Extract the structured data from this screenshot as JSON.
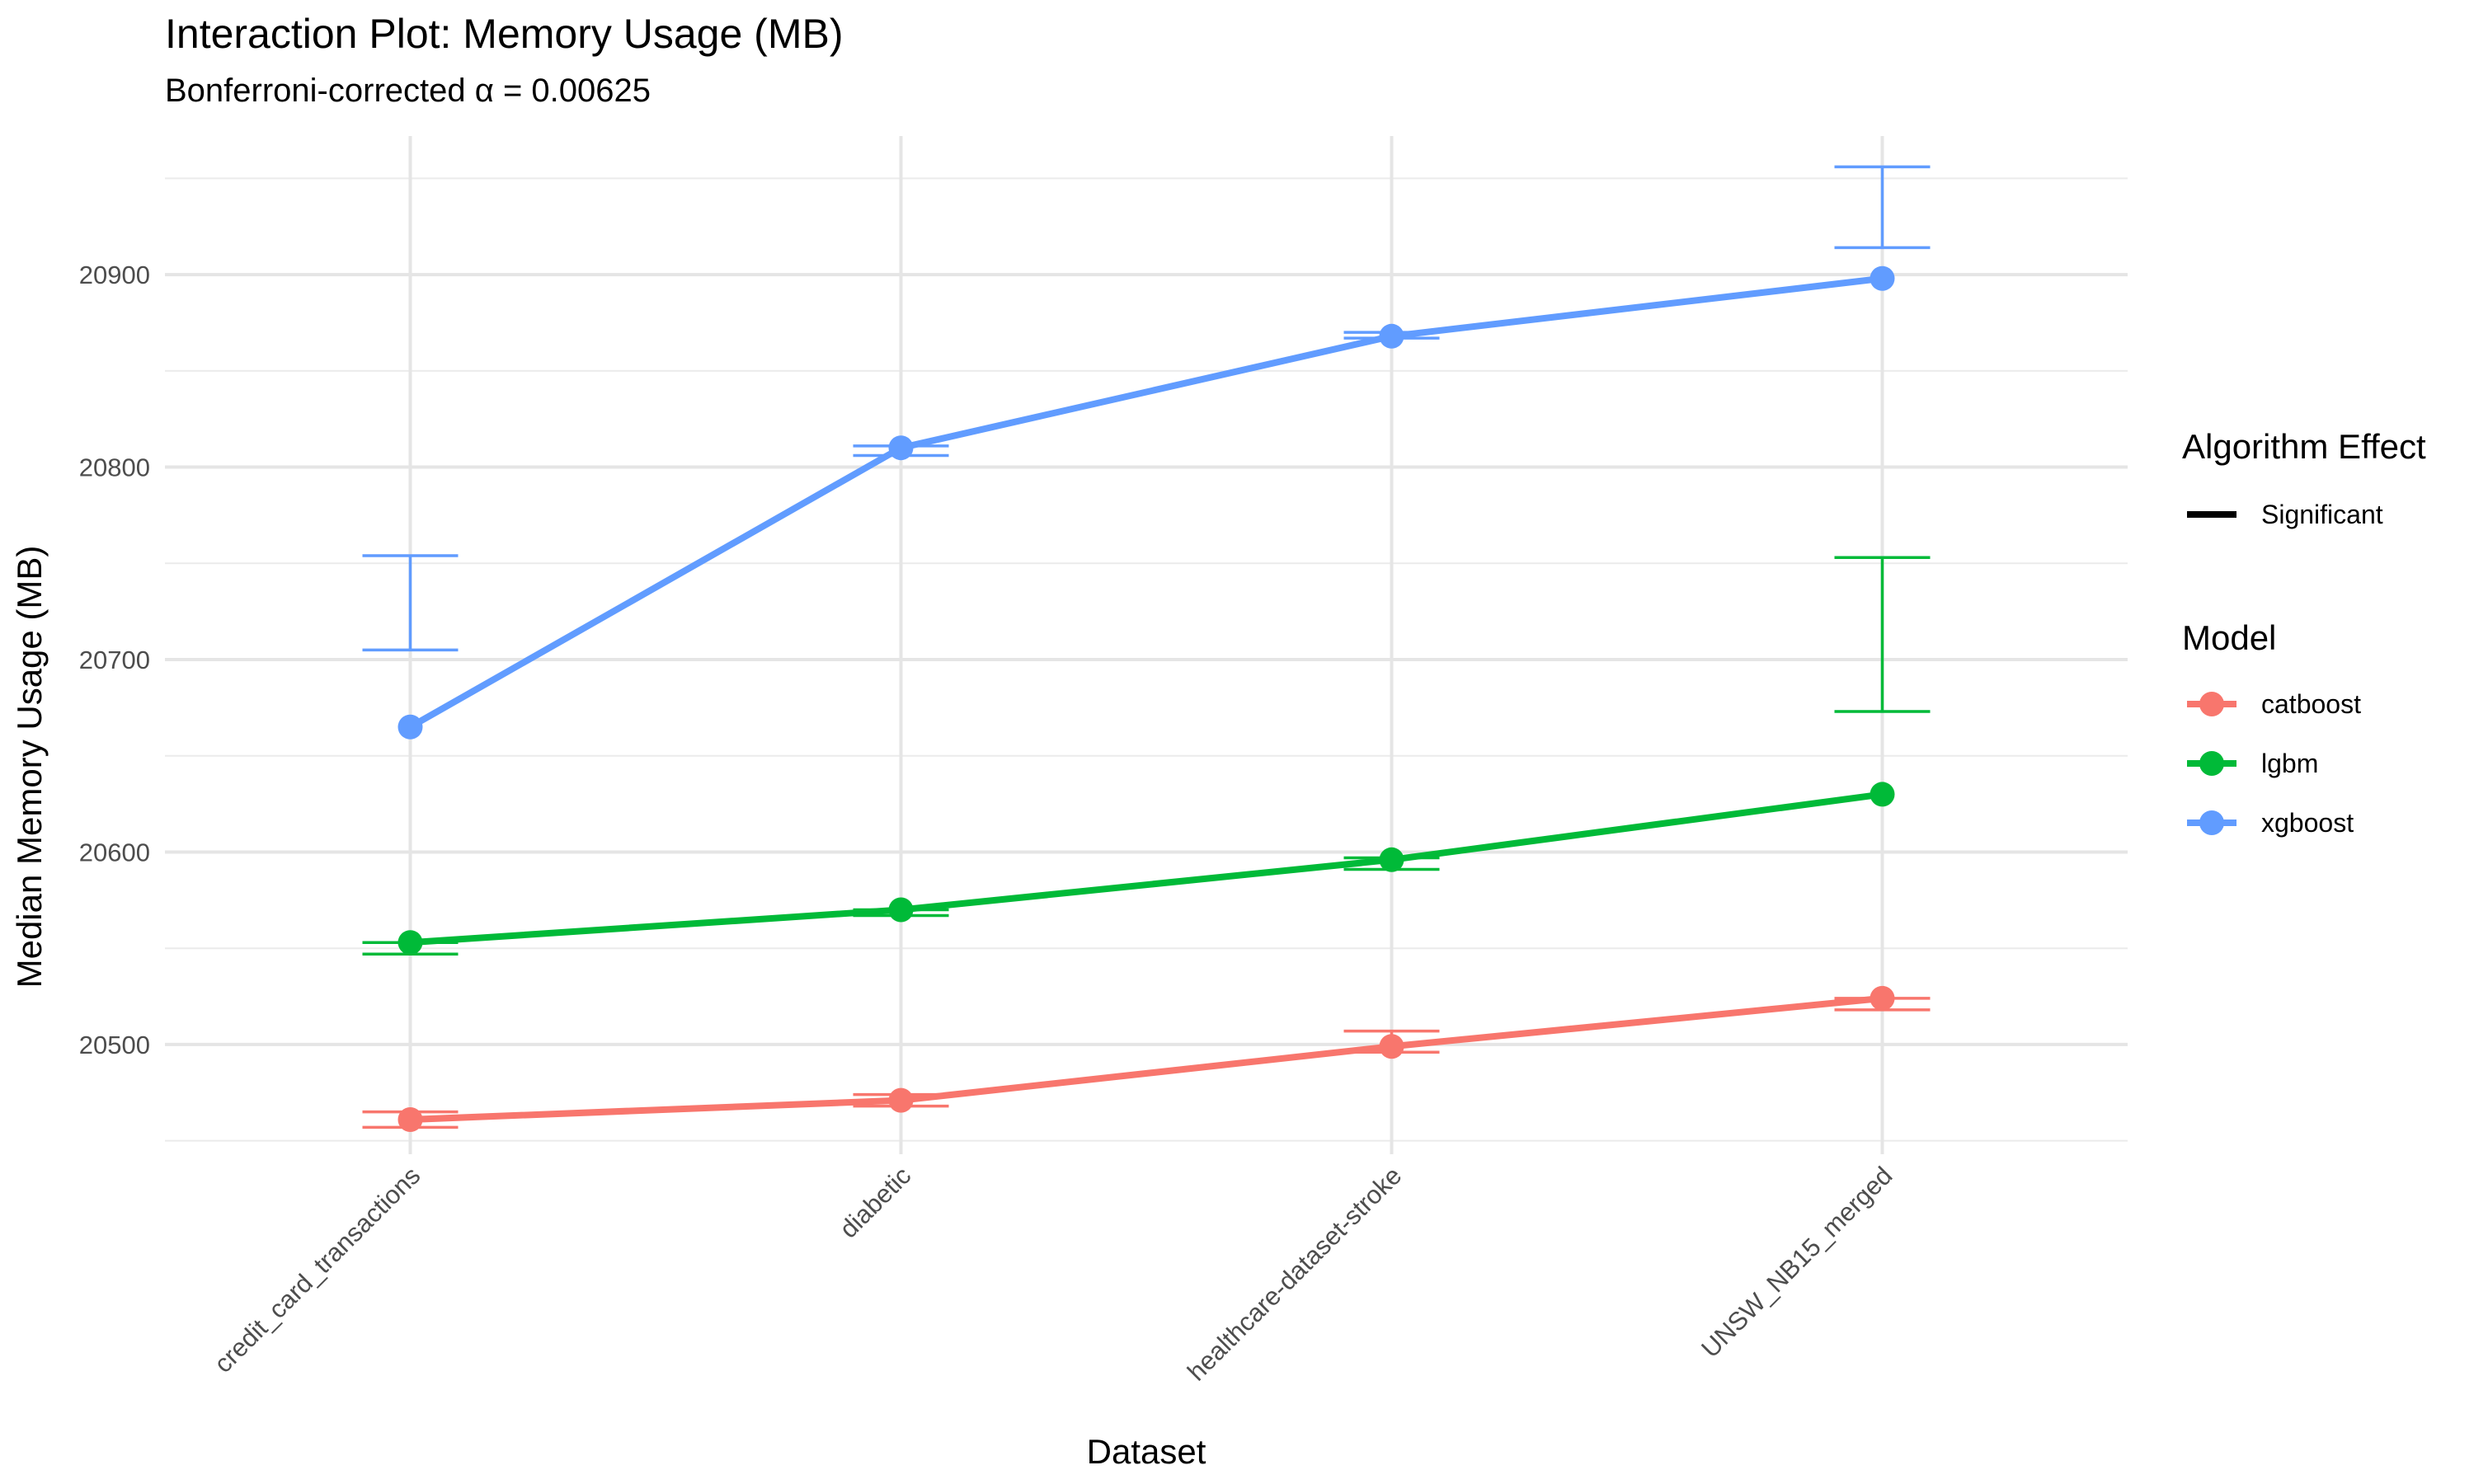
{
  "chart_data": {
    "type": "line",
    "title": "Interaction Plot: Memory Usage (MB)",
    "subtitle": "Bonferroni-corrected α = 0.00625",
    "xlabel": "Dataset",
    "ylabel": "Median Memory Usage (MB)",
    "categories": [
      "credit_card_transactions",
      "diabetic",
      "healthcare-dataset-stroke",
      "UNSW_NB15_merged"
    ],
    "ylim": [
      20443,
      20972
    ],
    "yticks": [
      20500,
      20600,
      20700,
      20800,
      20900
    ],
    "ytick_labels": [
      "20500",
      "20600",
      "20700",
      "20800",
      "20900"
    ],
    "grid": true,
    "legend_position": "right",
    "series": [
      {
        "name": "catboost",
        "color": "#F8766D",
        "values": [
          20461,
          20471,
          20499,
          20524
        ],
        "err_low": [
          20457,
          20468,
          20496,
          20518
        ],
        "err_high": [
          20465,
          20474,
          20507,
          20524
        ]
      },
      {
        "name": "lgbm",
        "color": "#00BA38",
        "values": [
          20553,
          20570,
          20596,
          20630
        ],
        "err_low": [
          20547,
          20567,
          20591,
          20673
        ],
        "err_high": [
          20553,
          20570,
          20597,
          20753
        ]
      },
      {
        "name": "xgboost",
        "color": "#619CFF",
        "values": [
          20665,
          20810,
          20868,
          20898
        ],
        "err_low": [
          20705,
          20806,
          20867,
          20914
        ],
        "err_high": [
          20754,
          20811,
          20870,
          20956
        ]
      }
    ],
    "legends": {
      "algorithm_effect": {
        "title": "Algorithm Effect",
        "items": [
          "Significant"
        ]
      },
      "model": {
        "title": "Model",
        "items": [
          "catboost",
          "lgbm",
          "xgboost"
        ]
      }
    }
  }
}
